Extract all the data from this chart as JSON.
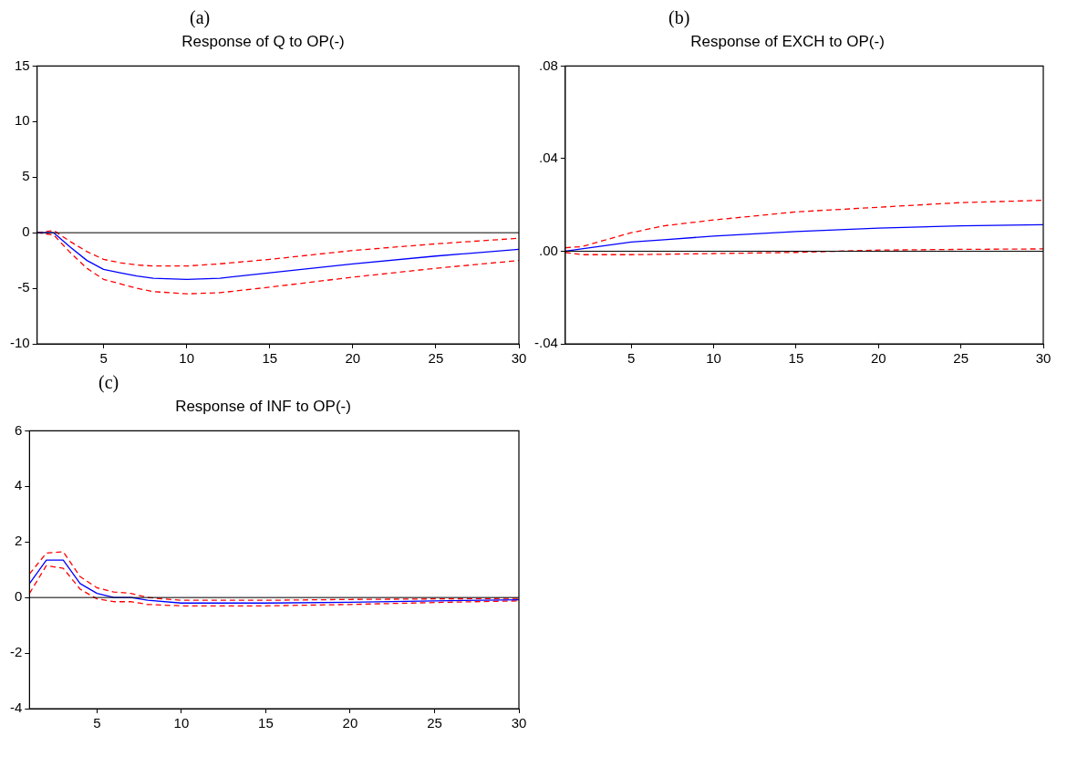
{
  "chart_data": [
    {
      "type": "line",
      "subtitle": "(a)",
      "title": "Response of Q to OP(-)",
      "xlim": [
        1,
        30
      ],
      "xticks": [
        5,
        10,
        15,
        20,
        25,
        30
      ],
      "ylim": [
        -10,
        15
      ],
      "yticks": [
        -10,
        -5,
        0,
        5,
        10,
        15
      ],
      "grid": false,
      "legend": false,
      "marker": "none",
      "ref_lines": [
        {
          "axis": "y",
          "value": 0,
          "color": "#000000"
        }
      ],
      "series": [
        {
          "color": "#0000ff",
          "line_style": "solid",
          "x": [
            1,
            2,
            3,
            4,
            5,
            6,
            7,
            8,
            10,
            12,
            15,
            20,
            25,
            30
          ],
          "values": [
            0,
            0,
            -1.3,
            -2.5,
            -3.3,
            -3.6,
            -3.9,
            -4.1,
            -4.2,
            -4.1,
            -3.6,
            -2.8,
            -2.1,
            -1.5
          ]
        },
        {
          "color": "#ff0000",
          "line_style": "dashed",
          "x": [
            1,
            2,
            3,
            4,
            5,
            6,
            7,
            8,
            10,
            12,
            15,
            20,
            25,
            30
          ],
          "values": [
            0,
            0.2,
            -0.8,
            -1.7,
            -2.4,
            -2.7,
            -2.9,
            -3.0,
            -3.0,
            -2.8,
            -2.4,
            -1.6,
            -1.0,
            -0.5
          ]
        },
        {
          "color": "#ff0000",
          "line_style": "dashed",
          "x": [
            1,
            2,
            3,
            4,
            5,
            6,
            7,
            8,
            10,
            12,
            15,
            20,
            25,
            30
          ],
          "values": [
            0,
            -0.2,
            -1.8,
            -3.2,
            -4.2,
            -4.6,
            -5.0,
            -5.3,
            -5.5,
            -5.4,
            -4.9,
            -4.0,
            -3.2,
            -2.5
          ]
        }
      ]
    },
    {
      "type": "line",
      "subtitle": "(b)",
      "title": "Response of EXCH to OP(-)",
      "xlim": [
        1,
        30
      ],
      "xticks": [
        5,
        10,
        15,
        20,
        25,
        30
      ],
      "ylim": [
        -0.04,
        0.08
      ],
      "yticks": [
        {
          "value": -0.04,
          "label": "-.04"
        },
        {
          "value": 0,
          "label": ".00"
        },
        {
          "value": 0.04,
          "label": ".04"
        },
        {
          "value": 0.08,
          "label": ".08"
        }
      ],
      "grid": false,
      "legend": false,
      "marker": "none",
      "ref_lines": [
        {
          "axis": "y",
          "value": 0,
          "color": "#000000"
        }
      ],
      "series": [
        {
          "color": "#0000ff",
          "line_style": "solid",
          "x": [
            1,
            2,
            3,
            4,
            5,
            7,
            10,
            15,
            20,
            25,
            30
          ],
          "values": [
            0,
            0.001,
            0.002,
            0.003,
            0.004,
            0.005,
            0.0065,
            0.0085,
            0.01,
            0.011,
            0.0115
          ]
        },
        {
          "color": "#ff0000",
          "line_style": "dashed",
          "x": [
            1,
            2,
            3,
            5,
            7,
            10,
            15,
            20,
            25,
            30
          ],
          "values": [
            0.0015,
            0.002,
            0.004,
            0.008,
            0.011,
            0.0135,
            0.017,
            0.019,
            0.021,
            0.022
          ]
        },
        {
          "color": "#ff0000",
          "line_style": "dashed",
          "x": [
            1,
            2,
            5,
            10,
            15,
            20,
            25,
            30
          ],
          "values": [
            -0.0005,
            -0.0015,
            -0.0015,
            -0.001,
            -0.0005,
            0.0005,
            0.0008,
            0.001
          ]
        }
      ]
    },
    {
      "type": "line",
      "subtitle": "(c)",
      "title": "Response of INF to OP(-)",
      "xlim": [
        1,
        30
      ],
      "xticks": [
        5,
        10,
        15,
        20,
        25,
        30
      ],
      "ylim": [
        -4,
        6
      ],
      "yticks": [
        -4,
        -2,
        0,
        2,
        4,
        6
      ],
      "grid": false,
      "legend": false,
      "marker": "none",
      "ref_lines": [
        {
          "axis": "y",
          "value": 0,
          "color": "#000000"
        }
      ],
      "series": [
        {
          "color": "#0000ff",
          "line_style": "solid",
          "x": [
            1,
            2,
            3,
            4,
            5,
            6,
            7,
            8,
            10,
            15,
            20,
            25,
            30
          ],
          "values": [
            0.5,
            1.35,
            1.35,
            0.5,
            0.15,
            0,
            0,
            -0.1,
            -0.2,
            -0.2,
            -0.17,
            -0.12,
            -0.08
          ]
        },
        {
          "color": "#ff0000",
          "line_style": "dashed",
          "x": [
            1,
            2,
            3,
            4,
            5,
            6,
            7,
            8,
            10,
            15,
            20,
            25,
            30
          ],
          "values": [
            0.85,
            1.6,
            1.65,
            0.75,
            0.35,
            0.2,
            0.15,
            0,
            -0.1,
            -0.1,
            -0.07,
            -0.05,
            -0.03
          ]
        },
        {
          "color": "#ff0000",
          "line_style": "dashed",
          "x": [
            1,
            2,
            3,
            4,
            5,
            6,
            7,
            8,
            10,
            15,
            20,
            25,
            30
          ],
          "values": [
            0.15,
            1.15,
            1.05,
            0.3,
            -0.05,
            -0.15,
            -0.15,
            -0.25,
            -0.3,
            -0.3,
            -0.25,
            -0.18,
            -0.12
          ]
        }
      ]
    }
  ]
}
